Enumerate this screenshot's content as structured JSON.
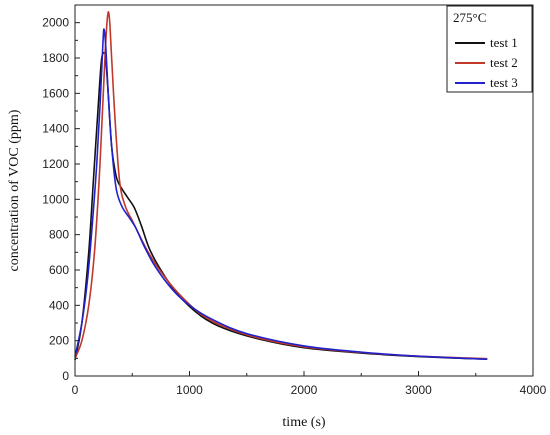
{
  "chart_data": {
    "type": "line",
    "title": "",
    "xlabel": "time (s)",
    "ylabel": "concentration of VOC (ppm)",
    "xlim": [
      0,
      4000
    ],
    "ylim": [
      0,
      2100
    ],
    "xticks": [
      0,
      1000,
      2000,
      3000,
      4000
    ],
    "yticks": [
      0,
      200,
      400,
      600,
      800,
      1000,
      1200,
      1400,
      1600,
      1800,
      2000
    ],
    "grid": false,
    "legend": {
      "title": "275°C",
      "placement": "top-right"
    },
    "series": [
      {
        "name": "test 1",
        "color": "#111111",
        "x": [
          0,
          60,
          120,
          160,
          200,
          230,
          255,
          270,
          290,
          320,
          360,
          400,
          460,
          520,
          580,
          650,
          750,
          900,
          1100,
          1300,
          1600,
          2000,
          2500,
          3000,
          3600
        ],
        "y": [
          90,
          300,
          700,
          1100,
          1500,
          1780,
          1830,
          1780,
          1600,
          1300,
          1130,
          1070,
          1010,
          950,
          850,
          720,
          600,
          460,
          340,
          270,
          210,
          160,
          130,
          110,
          95
        ]
      },
      {
        "name": "test 2",
        "color": "#c0392b",
        "x": [
          0,
          60,
          120,
          170,
          210,
          240,
          265,
          285,
          300,
          320,
          350,
          390,
          440,
          500,
          560,
          640,
          750,
          900,
          1100,
          1300,
          1600,
          2000,
          2500,
          3000,
          3600
        ],
        "y": [
          100,
          200,
          400,
          700,
          1100,
          1500,
          1850,
          2040,
          2030,
          1800,
          1450,
          1100,
          960,
          880,
          800,
          700,
          590,
          470,
          350,
          280,
          215,
          165,
          133,
          112,
          98
        ]
      },
      {
        "name": "test 3",
        "color": "#2222cc",
        "x": [
          0,
          60,
          110,
          150,
          190,
          220,
          245,
          255,
          270,
          290,
          320,
          360,
          410,
          470,
          530,
          600,
          700,
          850,
          1000,
          1200,
          1500,
          2000,
          2500,
          3000,
          3600
        ],
        "y": [
          110,
          300,
          550,
          850,
          1200,
          1550,
          1900,
          1960,
          1850,
          1600,
          1300,
          1060,
          960,
          900,
          840,
          740,
          620,
          490,
          400,
          320,
          240,
          170,
          135,
          112,
          95
        ]
      }
    ]
  }
}
